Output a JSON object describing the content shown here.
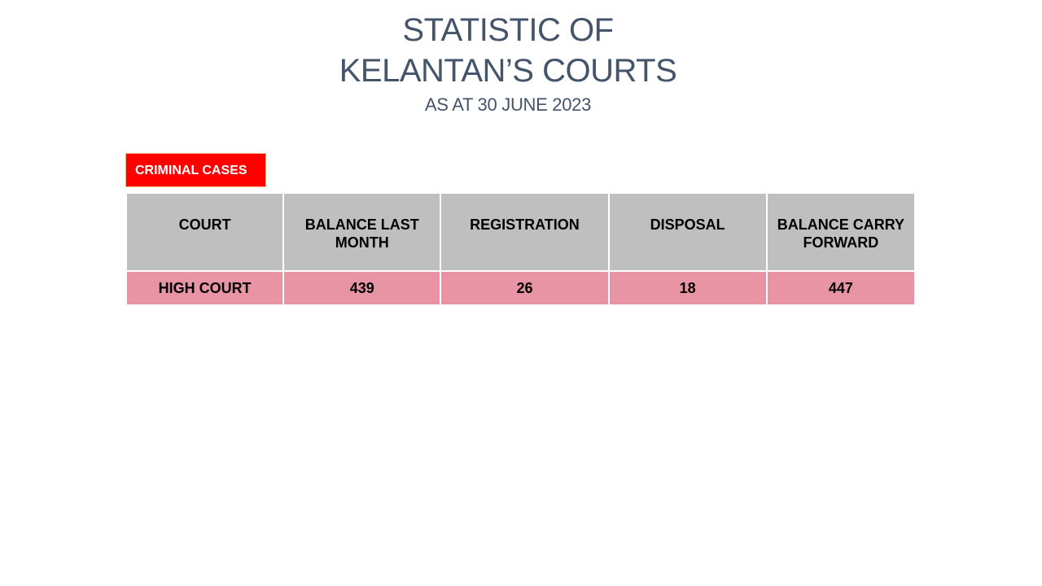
{
  "header": {
    "title_line1": "STATISTIC OF",
    "title_line2": "KELANTAN’S COURTS",
    "subtitle": "AS AT 30 JUNE 2023"
  },
  "section": {
    "label": "CRIMINAL CASES",
    "color": "#ff0000"
  },
  "table": {
    "columns": [
      "COURT",
      "BALANCE LAST MONTH",
      "REGISTRATION",
      "DISPOSAL",
      "BALANCE CARRY FORWARD"
    ],
    "rows": [
      [
        "HIGH COURT",
        "439",
        "26",
        "18",
        "447"
      ]
    ],
    "header_color": "#bfbfbf",
    "row_color": "#e994a4"
  }
}
